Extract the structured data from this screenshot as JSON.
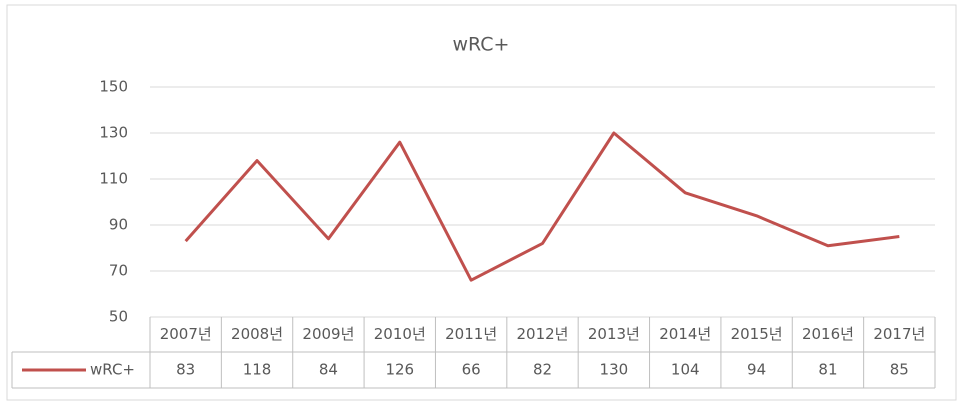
{
  "chart_data": {
    "type": "line",
    "title": "wRC+",
    "categories": [
      "2007년",
      "2008년",
      "2009년",
      "2010년",
      "2011년",
      "2012년",
      "2013년",
      "2014년",
      "2015년",
      "2016년",
      "2017년"
    ],
    "series": [
      {
        "name": "wRC+",
        "color": "#c0504d",
        "values": [
          83,
          118,
          84,
          126,
          66,
          82,
          130,
          104,
          94,
          81,
          85
        ]
      }
    ],
    "ylim": [
      50,
      150
    ],
    "yticks": [
      50,
      70,
      90,
      110,
      130,
      150
    ],
    "grid": true,
    "data_table": true
  }
}
